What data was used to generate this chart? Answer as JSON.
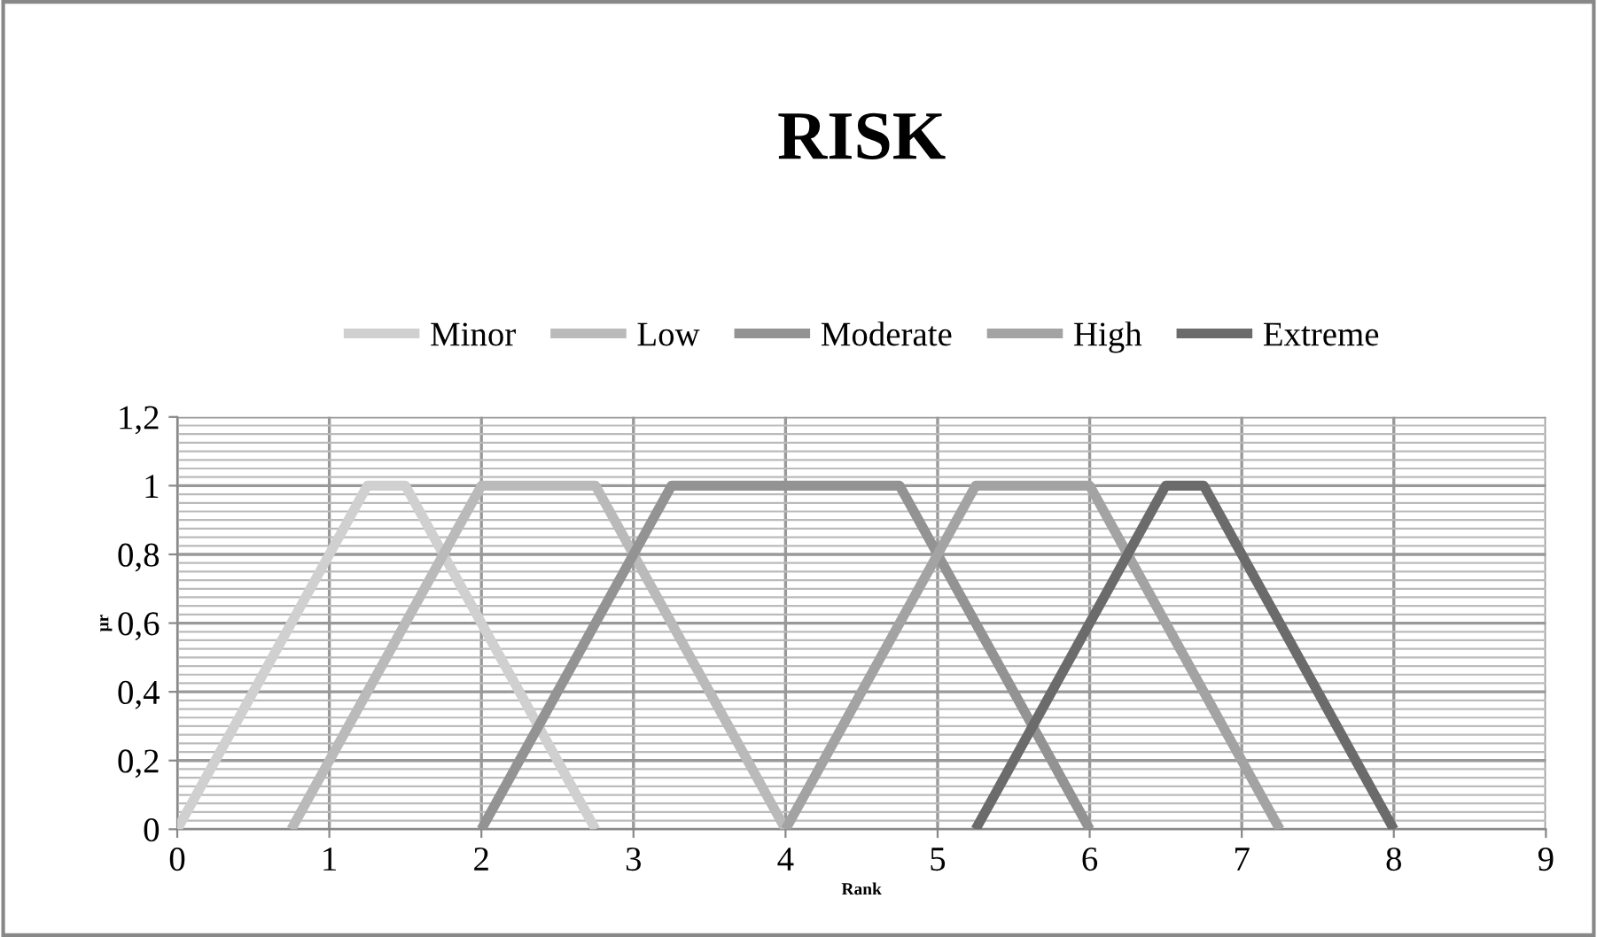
{
  "chart_data": {
    "type": "line",
    "title": "RISK",
    "xlabel": "Rank",
    "ylabel": "μr",
    "xlim": [
      0,
      9
    ],
    "xticks": [
      0,
      1,
      2,
      3,
      4,
      5,
      6,
      7,
      8,
      9
    ],
    "ylim": [
      0,
      1.2
    ],
    "yticks": [
      0,
      {
        "value": 0.2,
        "label": "0,2"
      },
      {
        "value": 0.4,
        "label": "0,4"
      },
      {
        "value": 0.6,
        "label": "0,6"
      },
      {
        "value": 0.8,
        "label": "0,8"
      },
      1,
      {
        "value": 1.2,
        "label": "1,2"
      }
    ],
    "grid": true,
    "legend": "top",
    "marker": "none",
    "line_style": "solid",
    "series": [
      {
        "name": "Minor",
        "color": "#d0d0d0",
        "x": [
          0,
          1.25,
          1.5,
          2.75
        ],
        "values": [
          0,
          1,
          1,
          0
        ]
      },
      {
        "name": "Low",
        "color": "#bababa",
        "x": [
          0.75,
          2,
          2.75,
          4
        ],
        "values": [
          0,
          1,
          1,
          0
        ]
      },
      {
        "name": "Moderate",
        "color": "#939393",
        "x": [
          2,
          3.25,
          4.75,
          6
        ],
        "values": [
          0,
          1,
          1,
          0
        ]
      },
      {
        "name": "High",
        "color": "#a3a3a3",
        "x": [
          4,
          5.25,
          6,
          7.25
        ],
        "values": [
          0,
          1,
          1,
          0
        ]
      },
      {
        "name": "Extreme",
        "color": "#6b6b6b",
        "x": [
          5.25,
          6.5,
          6.75,
          8
        ],
        "values": [
          0,
          1,
          1,
          0
        ]
      }
    ]
  }
}
